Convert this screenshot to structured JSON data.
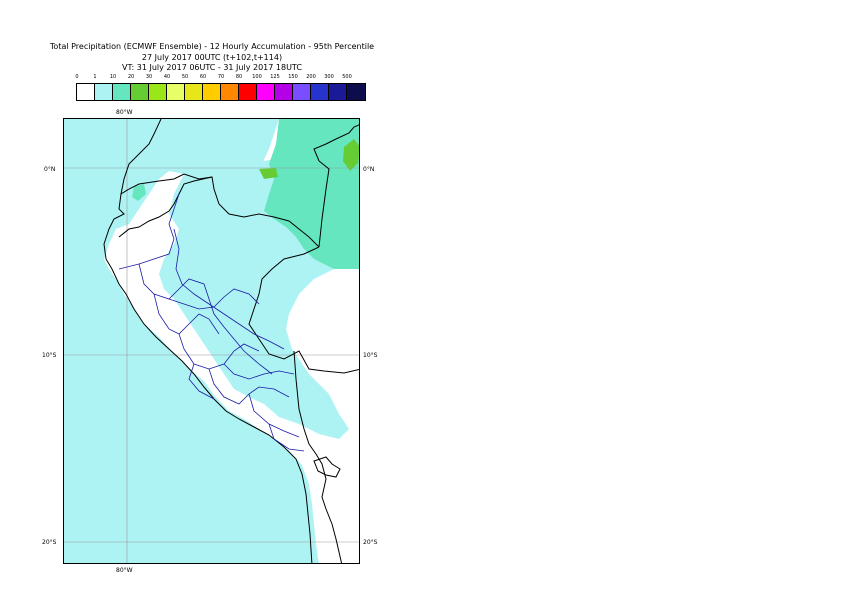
{
  "title": {
    "line1": "Total Precipitation (ECMWF Ensemble) - 12 Hourly Accumulation - 95th Percentile",
    "line2": "27 July 2017 00UTC (t+102,t+114)",
    "line3": "VT: 31 July 2017 06UTC - 31 July 2017 18UTC"
  },
  "legend": {
    "ticks": [
      "0",
      "1",
      "10",
      "20",
      "30",
      "40",
      "50",
      "60",
      "70",
      "80",
      "100",
      "125",
      "150",
      "200",
      "300",
      "500"
    ],
    "colors": [
      "#ffffff",
      "#aef3f3",
      "#66e6bf",
      "#66cc33",
      "#99e619",
      "#e6ff66",
      "#e6e619",
      "#ffcc00",
      "#ff8800",
      "#ff0000",
      "#ff00ff",
      "#b300e6",
      "#7a4dff",
      "#2633cc",
      "#1a1a99",
      "#0d0d4d"
    ]
  },
  "map": {
    "colors": {
      "land_fill": "#ffffff",
      "precip_1": "#aef3f3",
      "precip_10": "#66e6bf",
      "precip_20": "#66cc33",
      "coast": "#000000",
      "admin": "#1a1aa6",
      "grid": "#9a9a9a"
    },
    "labels": {
      "lon_top": "80°W",
      "lon_bottom": "80°W",
      "lat_0_left": "0°N",
      "lat_0_right": "0°N",
      "lat_10_left": "10°S",
      "lat_10_right": "10°S",
      "lat_20_left": "20°S",
      "lat_20_right": "20°S"
    }
  }
}
